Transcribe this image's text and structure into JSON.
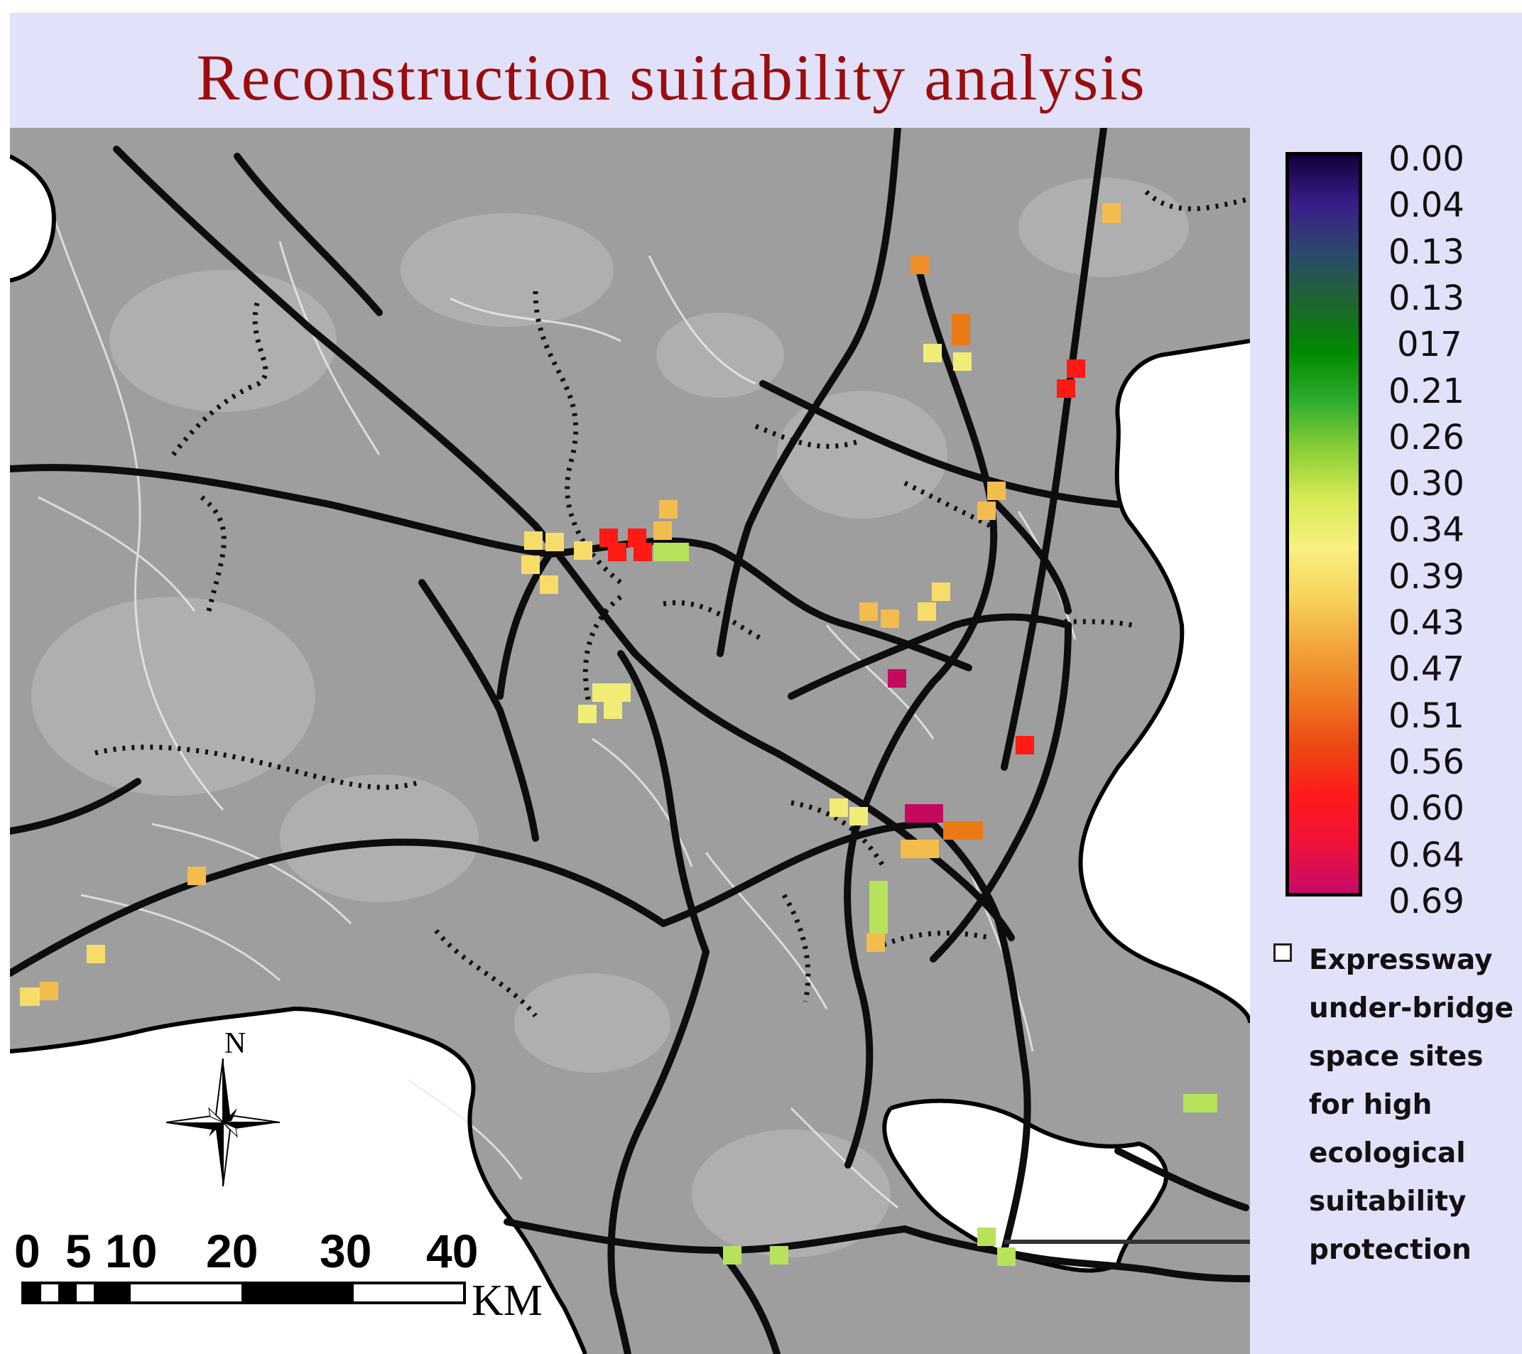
{
  "title": "Reconstruction suitability analysis",
  "legend": {
    "ticks": [
      "0.00",
      "0.04",
      "0.13",
      "0.13",
      "017",
      "0.21",
      "0.26",
      "0.30",
      "0.34",
      "0.39",
      "0.43",
      "0.47",
      "0.51",
      "0.56",
      "0.60",
      "0.64",
      "0.69"
    ],
    "gradient_colors": [
      "#14003c",
      "#3a1d8a",
      "#2c4a6b",
      "#1f6630",
      "#008a00",
      "#2fae2f",
      "#8ccf35",
      "#d9ea55",
      "#f8f080",
      "#f6d25a",
      "#f2a43a",
      "#ee7a22",
      "#ec4a14",
      "#ff1a1a",
      "#f0123a",
      "#c80a6a"
    ],
    "note": "Expressway under-bridge space sites for high ecological suitability protection"
  },
  "scale_bar": {
    "labels": [
      "0",
      "5",
      "10",
      "20",
      "30",
      "40"
    ],
    "unit": "KM"
  },
  "north_arrow": {
    "label": "N"
  },
  "site_colors": {
    "yellow": "#f7dc6a",
    "pale_yellow": "#f1ec75",
    "light_orange": "#f3bd4d",
    "orange": "#ee8f2a",
    "dark_orange": "#ea7a14",
    "red": "#ff1a14",
    "crimson": "#c5095e",
    "lime": "#b7e25a"
  }
}
